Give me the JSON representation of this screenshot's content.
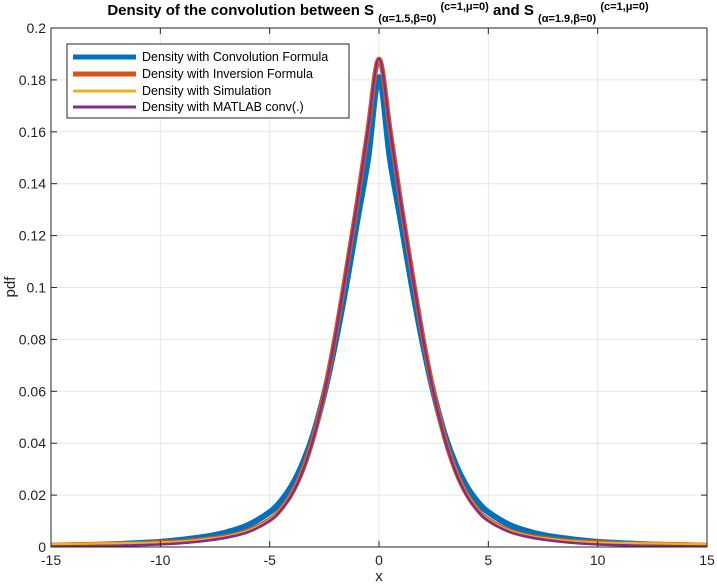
{
  "chart_data": {
    "type": "line",
    "title": {
      "prefix": "Density of the convolution between S",
      "sub1": "(α=1.5,β=0)",
      "sup1": "(c=1,μ=0)",
      "middle": " and S",
      "sub2": "(α=1.9,β=0)",
      "sup2": "(c=1,μ=0)"
    },
    "xlabel": "x",
    "ylabel": "pdf",
    "xlim": [
      -15,
      15
    ],
    "ylim": [
      0,
      0.2
    ],
    "xticks": [
      -15,
      -10,
      -5,
      0,
      5,
      10,
      15
    ],
    "xtick_labels": [
      "-15",
      "-10",
      "-5",
      "0",
      "5",
      "10",
      "15"
    ],
    "yticks": [
      0,
      0.02,
      0.04,
      0.06,
      0.08,
      0.1,
      0.12,
      0.14,
      0.16,
      0.18,
      0.2
    ],
    "ytick_labels": [
      "0",
      "0.02",
      "0.04",
      "0.06",
      "0.08",
      "0.1",
      "0.12",
      "0.14",
      "0.16",
      "0.18",
      "0.2"
    ],
    "grid": true,
    "legend_position": "top-left",
    "x": [
      -15,
      -14,
      -13,
      -12,
      -11,
      -10,
      -9,
      -8,
      -7,
      -6,
      -5,
      -4.5,
      -4,
      -3.5,
      -3,
      -2.5,
      -2,
      -1.5,
      -1,
      -0.5,
      0,
      0.5,
      1,
      1.5,
      2,
      2.5,
      3,
      3.5,
      4,
      4.5,
      5,
      6,
      7,
      8,
      9,
      10,
      11,
      12,
      13,
      14,
      15
    ],
    "series": [
      {
        "name": "Density with Convolution Formula",
        "color": "#0072BD",
        "values": [
          0.0004,
          0.0006,
          0.0008,
          0.0011,
          0.0015,
          0.002,
          0.0028,
          0.0039,
          0.0056,
          0.0084,
          0.0134,
          0.0175,
          0.0235,
          0.032,
          0.0436,
          0.0592,
          0.0785,
          0.1007,
          0.1254,
          0.1496,
          0.181,
          0.1496,
          0.1254,
          0.1007,
          0.0785,
          0.0592,
          0.0436,
          0.032,
          0.0235,
          0.0175,
          0.0134,
          0.0084,
          0.0056,
          0.0039,
          0.0028,
          0.002,
          0.0015,
          0.0011,
          0.0008,
          0.0006,
          0.0004
        ]
      },
      {
        "name": "Density with Inversion Formula",
        "color": "#D95319",
        "values": [
          0.0007,
          0.0009,
          0.001,
          0.0012,
          0.0014,
          0.0017,
          0.0021,
          0.0029,
          0.004,
          0.0062,
          0.0105,
          0.0145,
          0.0205,
          0.0295,
          0.0423,
          0.0596,
          0.0812,
          0.1063,
          0.1325,
          0.1612,
          0.188,
          0.1612,
          0.1325,
          0.1063,
          0.0812,
          0.0596,
          0.0423,
          0.0295,
          0.0205,
          0.0145,
          0.0105,
          0.0062,
          0.004,
          0.0029,
          0.0021,
          0.0017,
          0.0014,
          0.0012,
          0.001,
          0.0009,
          0.0007
        ]
      },
      {
        "name": "Density with Simulation",
        "color": "#EDB120",
        "values": [
          0.0011,
          0.0012,
          0.0013,
          0.0014,
          0.0015,
          0.0017,
          0.0021,
          0.0029,
          0.004,
          0.0062,
          0.0105,
          0.0145,
          0.0205,
          0.0295,
          0.0423,
          0.0596,
          0.0812,
          0.1063,
          0.1325,
          0.1612,
          0.1875,
          0.1612,
          0.1325,
          0.1063,
          0.0812,
          0.0596,
          0.0423,
          0.0295,
          0.0205,
          0.0145,
          0.0105,
          0.0062,
          0.004,
          0.0029,
          0.0021,
          0.0017,
          0.0015,
          0.0014,
          0.0013,
          0.0012,
          0.0011
        ]
      },
      {
        "name": "Density with MATLAB conv(.)",
        "color": "#7E2F8E",
        "values": [
          0.0002,
          0.0003,
          0.0004,
          0.0005,
          0.0007,
          0.001,
          0.0015,
          0.0023,
          0.0036,
          0.0057,
          0.0101,
          0.0141,
          0.0201,
          0.0291,
          0.042,
          0.0594,
          0.0811,
          0.1062,
          0.1325,
          0.1612,
          0.188,
          0.1612,
          0.1325,
          0.1062,
          0.0811,
          0.0594,
          0.042,
          0.0291,
          0.0201,
          0.0141,
          0.0101,
          0.0057,
          0.0036,
          0.0023,
          0.0015,
          0.001,
          0.0007,
          0.0005,
          0.0004,
          0.0003,
          0.0002
        ]
      }
    ]
  }
}
